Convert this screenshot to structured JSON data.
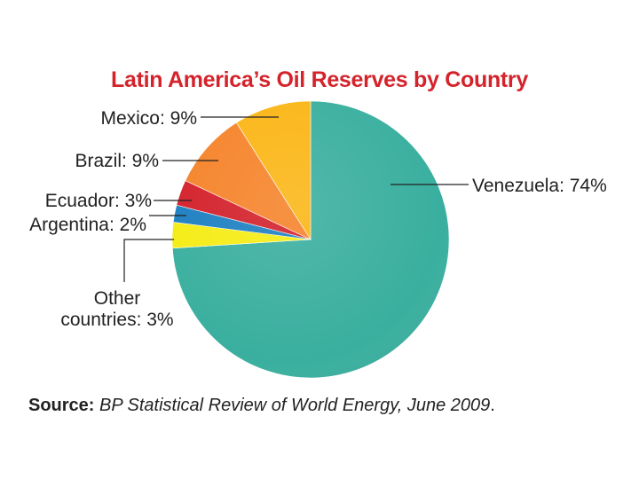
{
  "chart_data": {
    "type": "pie",
    "title": "Latin America’s Oil Reserves by Country",
    "unit": "%",
    "slices": [
      {
        "label": "Venezuela",
        "value": 74,
        "display": "Venezuela: 74%",
        "color": "#3aaf9f"
      },
      {
        "label": "Other countries",
        "value": 3,
        "display_line1": "Other",
        "display_line2": "countries: 3%",
        "color": "#f5ec14"
      },
      {
        "label": "Argentina",
        "value": 2,
        "display": "Argentina: 2%",
        "color": "#1d7fc1"
      },
      {
        "label": "Ecuador",
        "value": 3,
        "display": "Ecuador: 3%",
        "color": "#d3202b"
      },
      {
        "label": "Brazil",
        "value": 9,
        "display": "Brazil: 9%",
        "color": "#f5832a"
      },
      {
        "label": "Mexico",
        "value": 9,
        "display": "Mexico: 9%",
        "color": "#fbb616"
      }
    ],
    "legend": "none",
    "start": "top, clockwise"
  },
  "source": {
    "label": "Source:",
    "text": "BP Statistical Review of World Energy, June 2009",
    "end": "."
  }
}
